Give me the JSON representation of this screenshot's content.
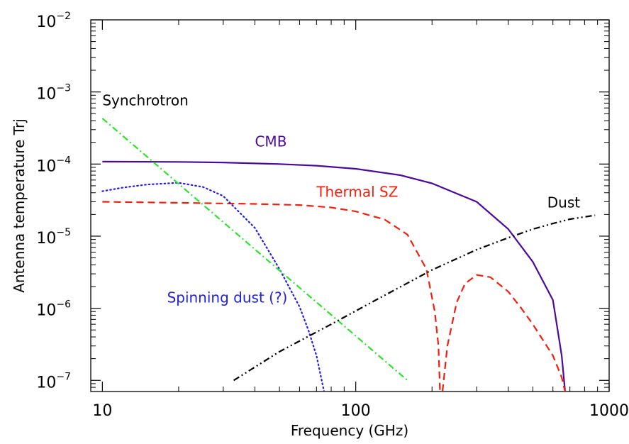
{
  "chart_data": {
    "type": "line",
    "xlabel": "Frequency (GHz)",
    "ylabel": "Antenna temperature Trj",
    "x_scale": "log",
    "y_scale": "log",
    "xlim": [
      9,
      1000
    ],
    "ylim": [
      7e-08,
      0.01
    ],
    "x_ticks": [
      {
        "value": 10,
        "label": "10"
      },
      {
        "value": 100,
        "label": "100"
      },
      {
        "value": 1000,
        "label": "1000"
      }
    ],
    "y_ticks": [
      {
        "value": 1e-07,
        "base": "10",
        "exp": "−7"
      },
      {
        "value": 1e-06,
        "base": "10",
        "exp": "−6"
      },
      {
        "value": 1e-05,
        "base": "10",
        "exp": "−5"
      },
      {
        "value": 0.0001,
        "base": "10",
        "exp": "−4"
      },
      {
        "value": 0.001,
        "base": "10",
        "exp": "−3"
      },
      {
        "value": 0.01,
        "base": "10",
        "exp": "−2"
      }
    ],
    "grid": false,
    "series": [
      {
        "name": "CMB",
        "color": "#4b0a9a",
        "style": "solid",
        "label_at": [
          40,
          0.000175
        ],
        "x": [
          10,
          20,
          30,
          50,
          70,
          100,
          150,
          200,
          300,
          400,
          500,
          600,
          650,
          670
        ],
        "y": [
          0.000108,
          0.000107,
          0.000105,
          0.0001,
          9.5e-05,
          8.6e-05,
          7e-05,
          5.4e-05,
          3e-05,
          1.25e-05,
          4.4e-06,
          1.3e-06,
          2.2e-07,
          7e-08
        ]
      },
      {
        "name": "Thermal SZ",
        "color": "#f02010",
        "style": "dashed",
        "label_at": [
          70,
          3.5e-05
        ],
        "x": [
          10,
          20,
          40,
          60,
          80,
          100,
          130,
          160,
          190,
          205,
          212,
          215,
          220,
          230,
          250,
          270,
          300,
          340,
          400,
          450,
          500,
          600,
          650,
          670
        ],
        "y": [
          3e-05,
          2.9e-05,
          2.8e-05,
          2.7e-05,
          2.5e-05,
          2.2e-05,
          1.7e-05,
          1.05e-05,
          3.5e-06,
          9e-07,
          3e-07,
          7e-08,
          7e-08,
          3e-07,
          1.2e-06,
          2.2e-06,
          2.9e-06,
          2.7e-06,
          1.7e-06,
          1e-06,
          6e-07,
          2.2e-07,
          1.1e-07,
          7e-08
        ]
      },
      {
        "name": "Spinning dust (?)",
        "color": "#2020e0",
        "style": "dotted",
        "label_at": [
          18,
          1.2e-06
        ],
        "x": [
          10,
          12,
          15,
          20,
          25,
          30,
          40,
          50,
          60,
          65,
          70,
          75
        ],
        "y": [
          4.2e-05,
          4.7e-05,
          5.2e-05,
          5.5e-05,
          4.8e-05,
          3.6e-05,
          1.3e-05,
          3.5e-06,
          1.05e-06,
          5e-07,
          2.2e-07,
          7e-08
        ]
      },
      {
        "name": "Synchrotron",
        "color": "#30e030",
        "style": "dashdot",
        "label_at": [
          10,
          0.00065
        ],
        "x": [
          10,
          160
        ],
        "y": [
          0.00043,
          1e-07
        ]
      },
      {
        "name": "Dust",
        "color": "#000000",
        "style": "dashdotdot",
        "label_at": [
          570,
          2.5e-05
        ],
        "x": [
          33,
          50,
          80,
          120,
          200,
          300,
          400,
          500,
          600,
          700,
          800,
          880
        ],
        "y": [
          1e-07,
          2.5e-07,
          6e-07,
          1.3e-06,
          3.4e-06,
          6.5e-06,
          9.5e-06,
          1.25e-05,
          1.5e-05,
          1.72e-05,
          1.85e-05,
          1.95e-05
        ]
      }
    ]
  }
}
